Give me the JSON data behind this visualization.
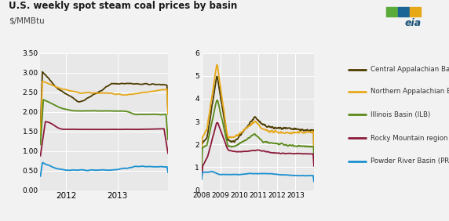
{
  "title": "U.S. weekly spot steam coal prices by basin",
  "subtitle": "$/MMBtu",
  "fig_bg": "#f2f2f2",
  "plot_bg": "#e8e8e8",
  "colors": {
    "CAPP": "#4d3b00",
    "NAPP": "#e6a817",
    "ILB": "#5a8a1a",
    "Rocky": "#8b1a3a",
    "PRB": "#1a90d0"
  },
  "legend_labels": [
    "Central Appalachian Basin (CAPP)",
    "Northern Appalachian Basin (NAPP)",
    "Illinois Basin (ILB)",
    "Rocky Mountain region",
    "Powder River Basin (PRB)"
  ],
  "left_yticks": [
    0.0,
    0.5,
    1.0,
    1.5,
    2.0,
    2.5,
    3.0,
    3.5
  ],
  "left_yticklabels": [
    "0.00",
    "0.50",
    "1.00",
    "1.50",
    "2.00",
    "2.50",
    "3.00",
    "3.50"
  ],
  "right_yticks": [
    0,
    1,
    2,
    3,
    4,
    5,
    6
  ],
  "right_yticklabels": [
    "0",
    "1",
    "2",
    "3",
    "4",
    "5",
    "6"
  ],
  "right_xtick_labels": [
    "2008",
    "2009",
    "2010",
    "2011",
    "2012",
    "2013"
  ],
  "left_xtick_labels": [
    "2012",
    "2013"
  ]
}
